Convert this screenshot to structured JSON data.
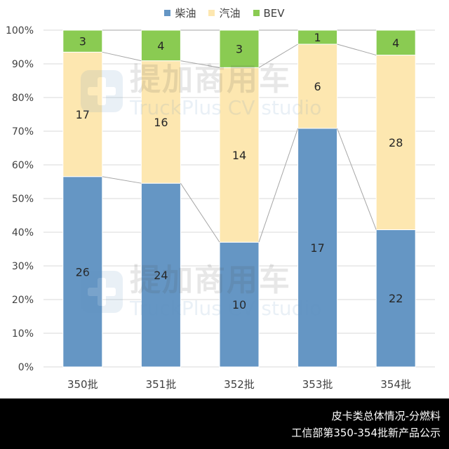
{
  "chart_data": {
    "type": "bar",
    "stacked": true,
    "percent_stacked": true,
    "categories": [
      "350批",
      "351批",
      "352批",
      "353批",
      "354批"
    ],
    "series": [
      {
        "name": "柴油",
        "values": [
          26,
          24,
          10,
          17,
          22
        ],
        "color": "#6596c4"
      },
      {
        "name": "汽油",
        "values": [
          17,
          16,
          14,
          6,
          28
        ],
        "color": "#fde7b0"
      },
      {
        "name": "BEV",
        "values": [
          3,
          4,
          3,
          1,
          4
        ],
        "color": "#8acb52"
      }
    ],
    "yticks": [
      "0%",
      "10%",
      "20%",
      "30%",
      "40%",
      "50%",
      "60%",
      "70%",
      "80%",
      "90%",
      "100%"
    ],
    "ylim": [
      0,
      100
    ],
    "legend_position": "top",
    "series_lines": true
  },
  "watermark": {
    "cn": "提加商用车",
    "en": "TruckPlus CV studio"
  },
  "footer": {
    "line1": "皮卡类总体情况-分燃料",
    "line2": "工信部第350-354批新产品公示"
  },
  "colors": {
    "axis_text": "#404040",
    "gridline": "#d9d9d9",
    "connector": "#a6a6a6"
  }
}
